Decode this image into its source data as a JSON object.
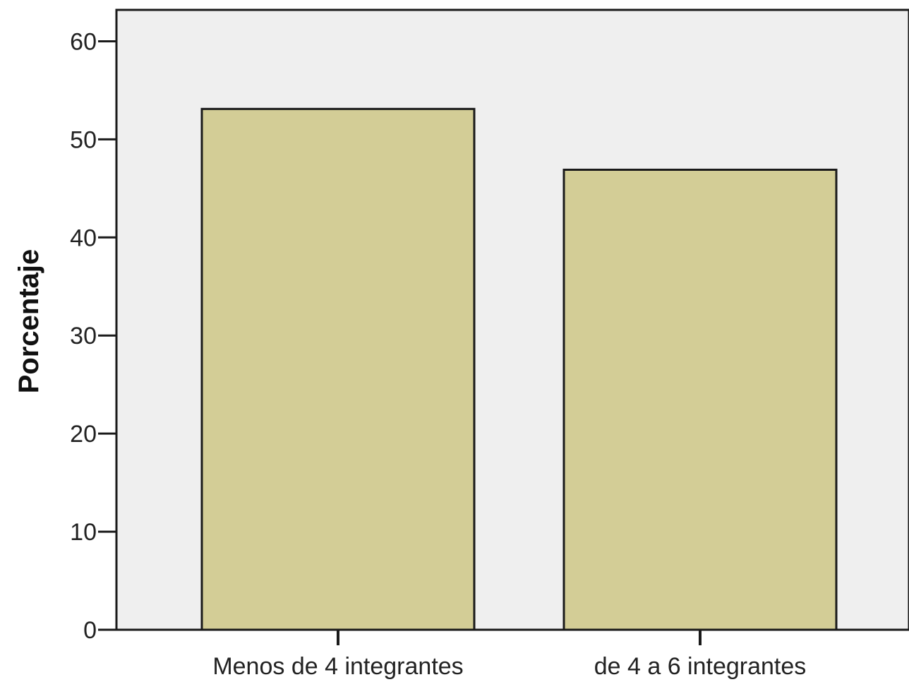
{
  "chart_data": {
    "type": "bar",
    "title": "",
    "xlabel": "",
    "ylabel": "Porcentaje",
    "ylim": [
      0,
      63.2
    ],
    "yticks": [
      0,
      10,
      20,
      30,
      40,
      50,
      60
    ],
    "grid": false,
    "categories": [
      "Menos de 4 integrantes",
      "de 4 a 6 integrantes"
    ],
    "values": [
      53.1,
      46.9
    ],
    "colors": {
      "bar_fill": "#d3cd96",
      "bar_stroke": "#1a1a1a",
      "plot_background": "#efefef",
      "axis": "#1a1a1a"
    }
  }
}
